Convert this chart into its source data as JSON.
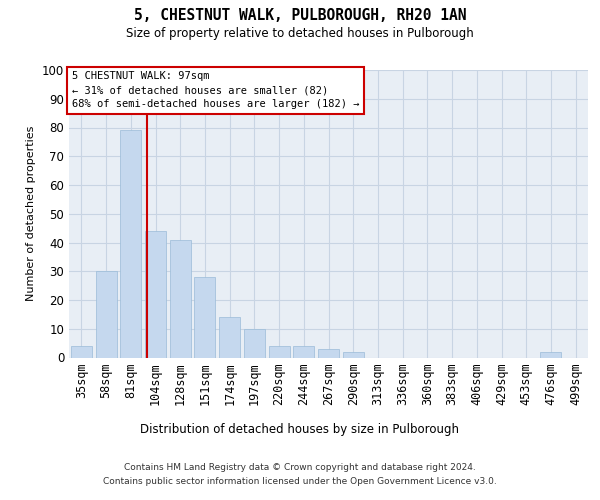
{
  "title": "5, CHESTNUT WALK, PULBOROUGH, RH20 1AN",
  "subtitle": "Size of property relative to detached houses in Pulborough",
  "xlabel": "Distribution of detached houses by size in Pulborough",
  "ylabel": "Number of detached properties",
  "categories": [
    "35sqm",
    "58sqm",
    "81sqm",
    "104sqm",
    "128sqm",
    "151sqm",
    "174sqm",
    "197sqm",
    "220sqm",
    "244sqm",
    "267sqm",
    "290sqm",
    "313sqm",
    "336sqm",
    "360sqm",
    "383sqm",
    "406sqm",
    "429sqm",
    "453sqm",
    "476sqm",
    "499sqm"
  ],
  "values": [
    4,
    30,
    79,
    44,
    41,
    28,
    14,
    10,
    4,
    4,
    3,
    2,
    0,
    0,
    0,
    0,
    0,
    0,
    0,
    2,
    0
  ],
  "bar_color": "#c5d8ee",
  "bar_edge_color": "#9abbd8",
  "vline_x": 2.67,
  "vline_color": "#cc0000",
  "annotation_line1": "5 CHESTNUT WALK: 97sqm",
  "annotation_line2": "← 31% of detached houses are smaller (82)",
  "annotation_line3": "68% of semi-detached houses are larger (182) →",
  "annotation_box_edgecolor": "#cc0000",
  "ylim": [
    0,
    100
  ],
  "yticks": [
    0,
    10,
    20,
    30,
    40,
    50,
    60,
    70,
    80,
    90,
    100
  ],
  "grid_color": "#c8d4e3",
  "bg_color": "#e8eef5",
  "footer1": "Contains HM Land Registry data © Crown copyright and database right 2024.",
  "footer2": "Contains public sector information licensed under the Open Government Licence v3.0."
}
